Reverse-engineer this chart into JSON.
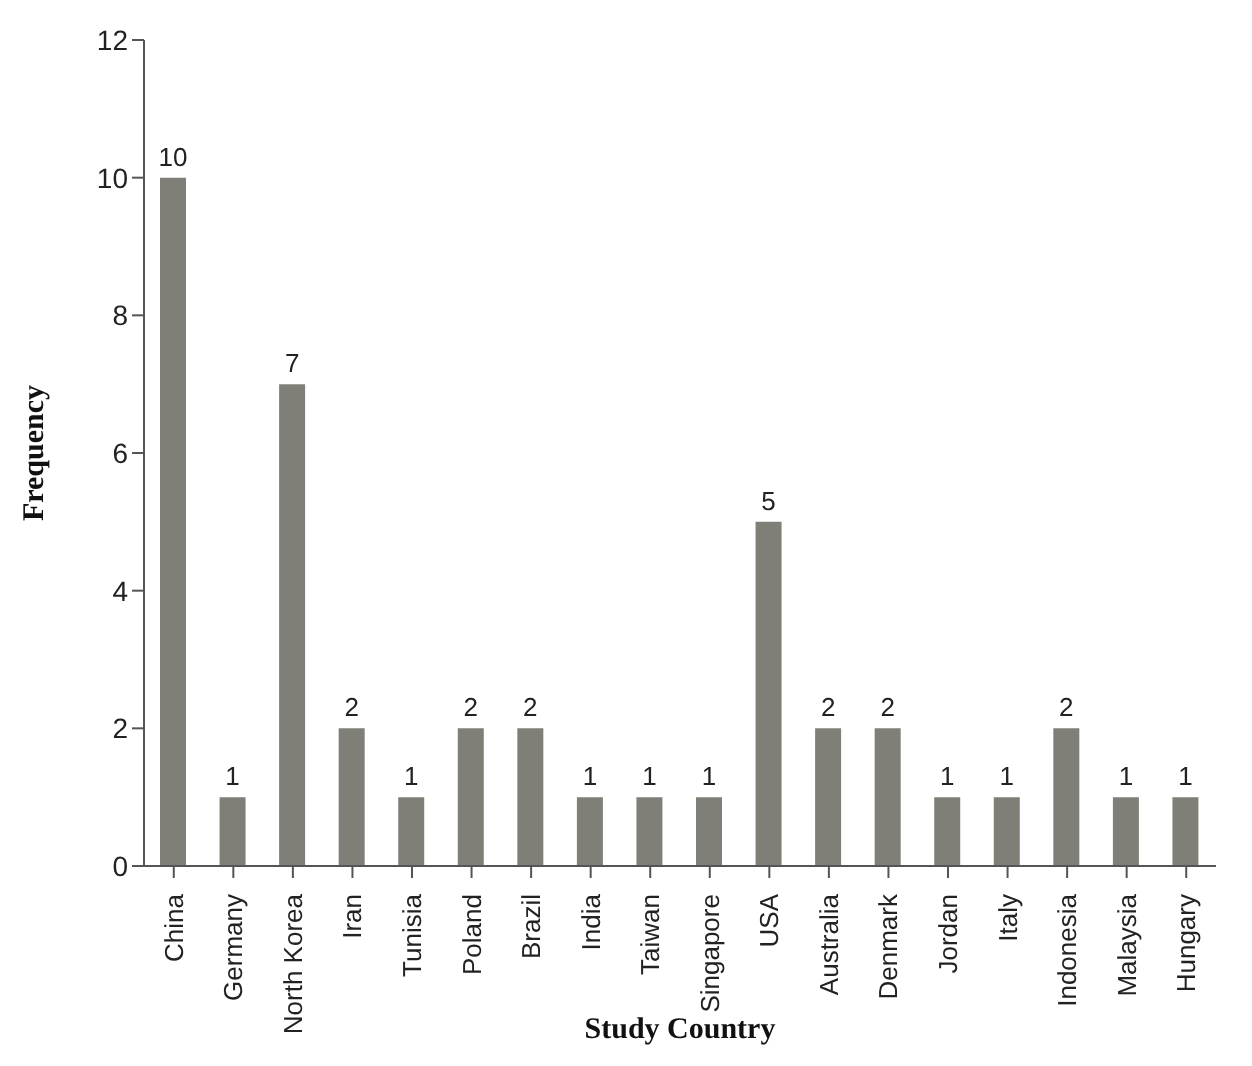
{
  "chart_data": {
    "type": "bar",
    "xlabel": "Study Country",
    "ylabel": "Frequency",
    "categories": [
      "China",
      "Germany",
      "North Korea",
      "Iran",
      "Tunisia",
      "Poland",
      "Brazil",
      "India",
      "Taiwan",
      "Singapore",
      "USA",
      "Australia",
      "Denmark",
      "Jordan",
      "Italy",
      "Indonesia",
      "Malaysia",
      "Hungary"
    ],
    "values": [
      10,
      1,
      7,
      2,
      1,
      2,
      2,
      1,
      1,
      1,
      5,
      2,
      2,
      1,
      1,
      2,
      1,
      1
    ],
    "color": "#7f7f78",
    "ylim": [
      0,
      12
    ],
    "yticks": [
      0,
      2,
      4,
      6,
      8,
      10,
      12
    ],
    "grid": false,
    "legend": false,
    "data_labels": true
  }
}
